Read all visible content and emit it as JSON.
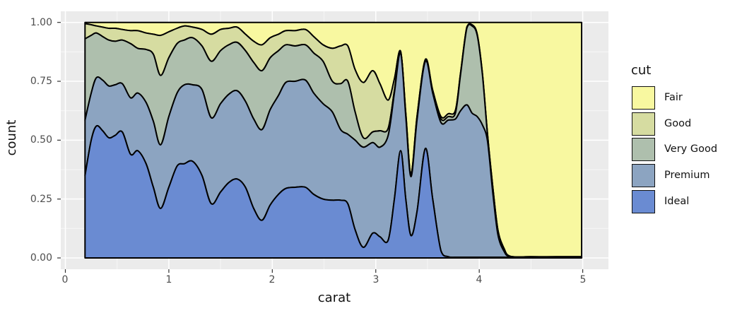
{
  "axes": {
    "x_title": "carat",
    "y_title": "count",
    "x_tick_labels": [
      "0",
      "1",
      "2",
      "3",
      "4",
      "5"
    ],
    "y_tick_labels": [
      "1.00",
      "0.75",
      "0.50",
      "0.25",
      "0.00"
    ]
  },
  "legend": {
    "title": "cut"
  },
  "chart_data": {
    "type": "area",
    "stacked": true,
    "position": "fill",
    "title": "",
    "xlabel": "carat",
    "ylabel": "count",
    "xlim": [
      -0.05,
      5.25
    ],
    "ylim": [
      -0.05,
      1.05
    ],
    "x_tick_values": [
      0,
      1,
      2,
      3,
      4,
      5
    ],
    "y_tick_values": [
      0,
      0.25,
      0.5,
      0.75,
      1.0
    ],
    "x_minor_values": [
      0.5,
      1.5,
      2.5,
      3.5,
      4.5
    ],
    "y_minor_values": [
      0.125,
      0.375,
      0.625,
      0.875
    ],
    "grid": true,
    "legend_position": "right",
    "legend": {
      "title": "cut",
      "entries": [
        {
          "label": "Fair",
          "color": "#F8F8A0"
        },
        {
          "label": "Good",
          "color": "#D6DCA1"
        },
        {
          "label": "Very Good",
          "color": "#AEBFAD"
        },
        {
          "label": "Premium",
          "color": "#8CA4C1"
        },
        {
          "label": "Ideal",
          "color": "#6A8BD2"
        }
      ]
    },
    "style": {
      "panel_bg": "#EBEBEB",
      "grid_major": "#FFFFFF",
      "grid_minor": "#FFFFFF",
      "area_stroke": "#000000",
      "tick_color": "#333333"
    },
    "x": [
      0.19,
      0.25,
      0.3,
      0.36,
      0.42,
      0.48,
      0.55,
      0.63,
      0.7,
      0.78,
      0.85,
      0.92,
      1.0,
      1.08,
      1.15,
      1.23,
      1.32,
      1.41,
      1.5,
      1.58,
      1.66,
      1.74,
      1.82,
      1.9,
      1.98,
      2.06,
      2.13,
      2.22,
      2.32,
      2.4,
      2.49,
      2.58,
      2.66,
      2.73,
      2.8,
      2.88,
      2.97,
      3.04,
      3.12,
      3.18,
      3.24,
      3.29,
      3.34,
      3.4,
      3.48,
      3.55,
      3.63,
      3.7,
      3.77,
      3.82,
      3.88,
      3.93,
      3.98,
      4.03,
      4.08,
      4.13,
      4.18,
      4.24,
      4.3,
      4.5,
      4.75,
      4.99
    ],
    "series": [
      {
        "name": "Ideal",
        "color": "#6A8BD2",
        "cumulative": [
          0.35,
          0.5,
          0.56,
          0.54,
          0.51,
          0.52,
          0.535,
          0.44,
          0.455,
          0.4,
          0.3,
          0.21,
          0.3,
          0.39,
          0.4,
          0.41,
          0.35,
          0.23,
          0.28,
          0.32,
          0.335,
          0.3,
          0.21,
          0.16,
          0.225,
          0.27,
          0.295,
          0.3,
          0.3,
          0.27,
          0.25,
          0.245,
          0.245,
          0.23,
          0.12,
          0.045,
          0.105,
          0.09,
          0.075,
          0.25,
          0.455,
          0.25,
          0.095,
          0.2,
          0.465,
          0.25,
          0.03,
          0.005,
          0.003,
          0.003,
          0.003,
          0.003,
          0.003,
          0.003,
          0.003,
          0.003,
          0.003,
          0.003,
          0.002,
          0.002,
          0.002,
          0.002
        ]
      },
      {
        "name": "Premium",
        "color": "#8CA4C1",
        "cumulative": [
          0.585,
          0.7,
          0.765,
          0.755,
          0.73,
          0.735,
          0.74,
          0.68,
          0.7,
          0.66,
          0.58,
          0.48,
          0.6,
          0.7,
          0.735,
          0.735,
          0.715,
          0.595,
          0.655,
          0.695,
          0.71,
          0.665,
          0.59,
          0.545,
          0.63,
          0.69,
          0.745,
          0.75,
          0.755,
          0.7,
          0.655,
          0.62,
          0.545,
          0.525,
          0.5,
          0.47,
          0.49,
          0.47,
          0.52,
          0.7,
          0.87,
          0.6,
          0.345,
          0.59,
          0.835,
          0.7,
          0.575,
          0.585,
          0.59,
          0.625,
          0.65,
          0.615,
          0.6,
          0.565,
          0.495,
          0.28,
          0.1,
          0.028,
          0.005,
          0.003,
          0.003,
          0.003
        ]
      },
      {
        "name": "Very Good",
        "color": "#AEBFAD",
        "cumulative": [
          0.93,
          0.945,
          0.955,
          0.94,
          0.925,
          0.92,
          0.925,
          0.91,
          0.89,
          0.885,
          0.865,
          0.775,
          0.85,
          0.91,
          0.925,
          0.935,
          0.9,
          0.835,
          0.88,
          0.905,
          0.915,
          0.88,
          0.83,
          0.795,
          0.85,
          0.88,
          0.905,
          0.9,
          0.905,
          0.87,
          0.835,
          0.75,
          0.74,
          0.75,
          0.62,
          0.51,
          0.535,
          0.54,
          0.55,
          0.71,
          0.872,
          0.605,
          0.35,
          0.595,
          0.838,
          0.705,
          0.59,
          0.6,
          0.615,
          0.78,
          0.975,
          0.985,
          0.945,
          0.78,
          0.52,
          0.3,
          0.115,
          0.035,
          0.006,
          0.004,
          0.004,
          0.004
        ]
      },
      {
        "name": "Good",
        "color": "#D6DCA1",
        "cumulative": [
          0.995,
          0.99,
          0.985,
          0.98,
          0.975,
          0.975,
          0.97,
          0.965,
          0.965,
          0.955,
          0.95,
          0.945,
          0.96,
          0.975,
          0.985,
          0.98,
          0.97,
          0.95,
          0.97,
          0.975,
          0.98,
          0.95,
          0.92,
          0.905,
          0.935,
          0.95,
          0.965,
          0.965,
          0.97,
          0.94,
          0.905,
          0.89,
          0.9,
          0.9,
          0.8,
          0.745,
          0.795,
          0.74,
          0.67,
          0.76,
          0.877,
          0.615,
          0.357,
          0.605,
          0.843,
          0.712,
          0.6,
          0.612,
          0.627,
          0.787,
          0.98,
          0.99,
          0.95,
          0.785,
          0.525,
          0.305,
          0.12,
          0.04,
          0.007,
          0.005,
          0.005,
          0.005
        ]
      },
      {
        "name": "Fair",
        "color": "#F8F8A0",
        "cumulative_constant": 1.0
      }
    ]
  }
}
